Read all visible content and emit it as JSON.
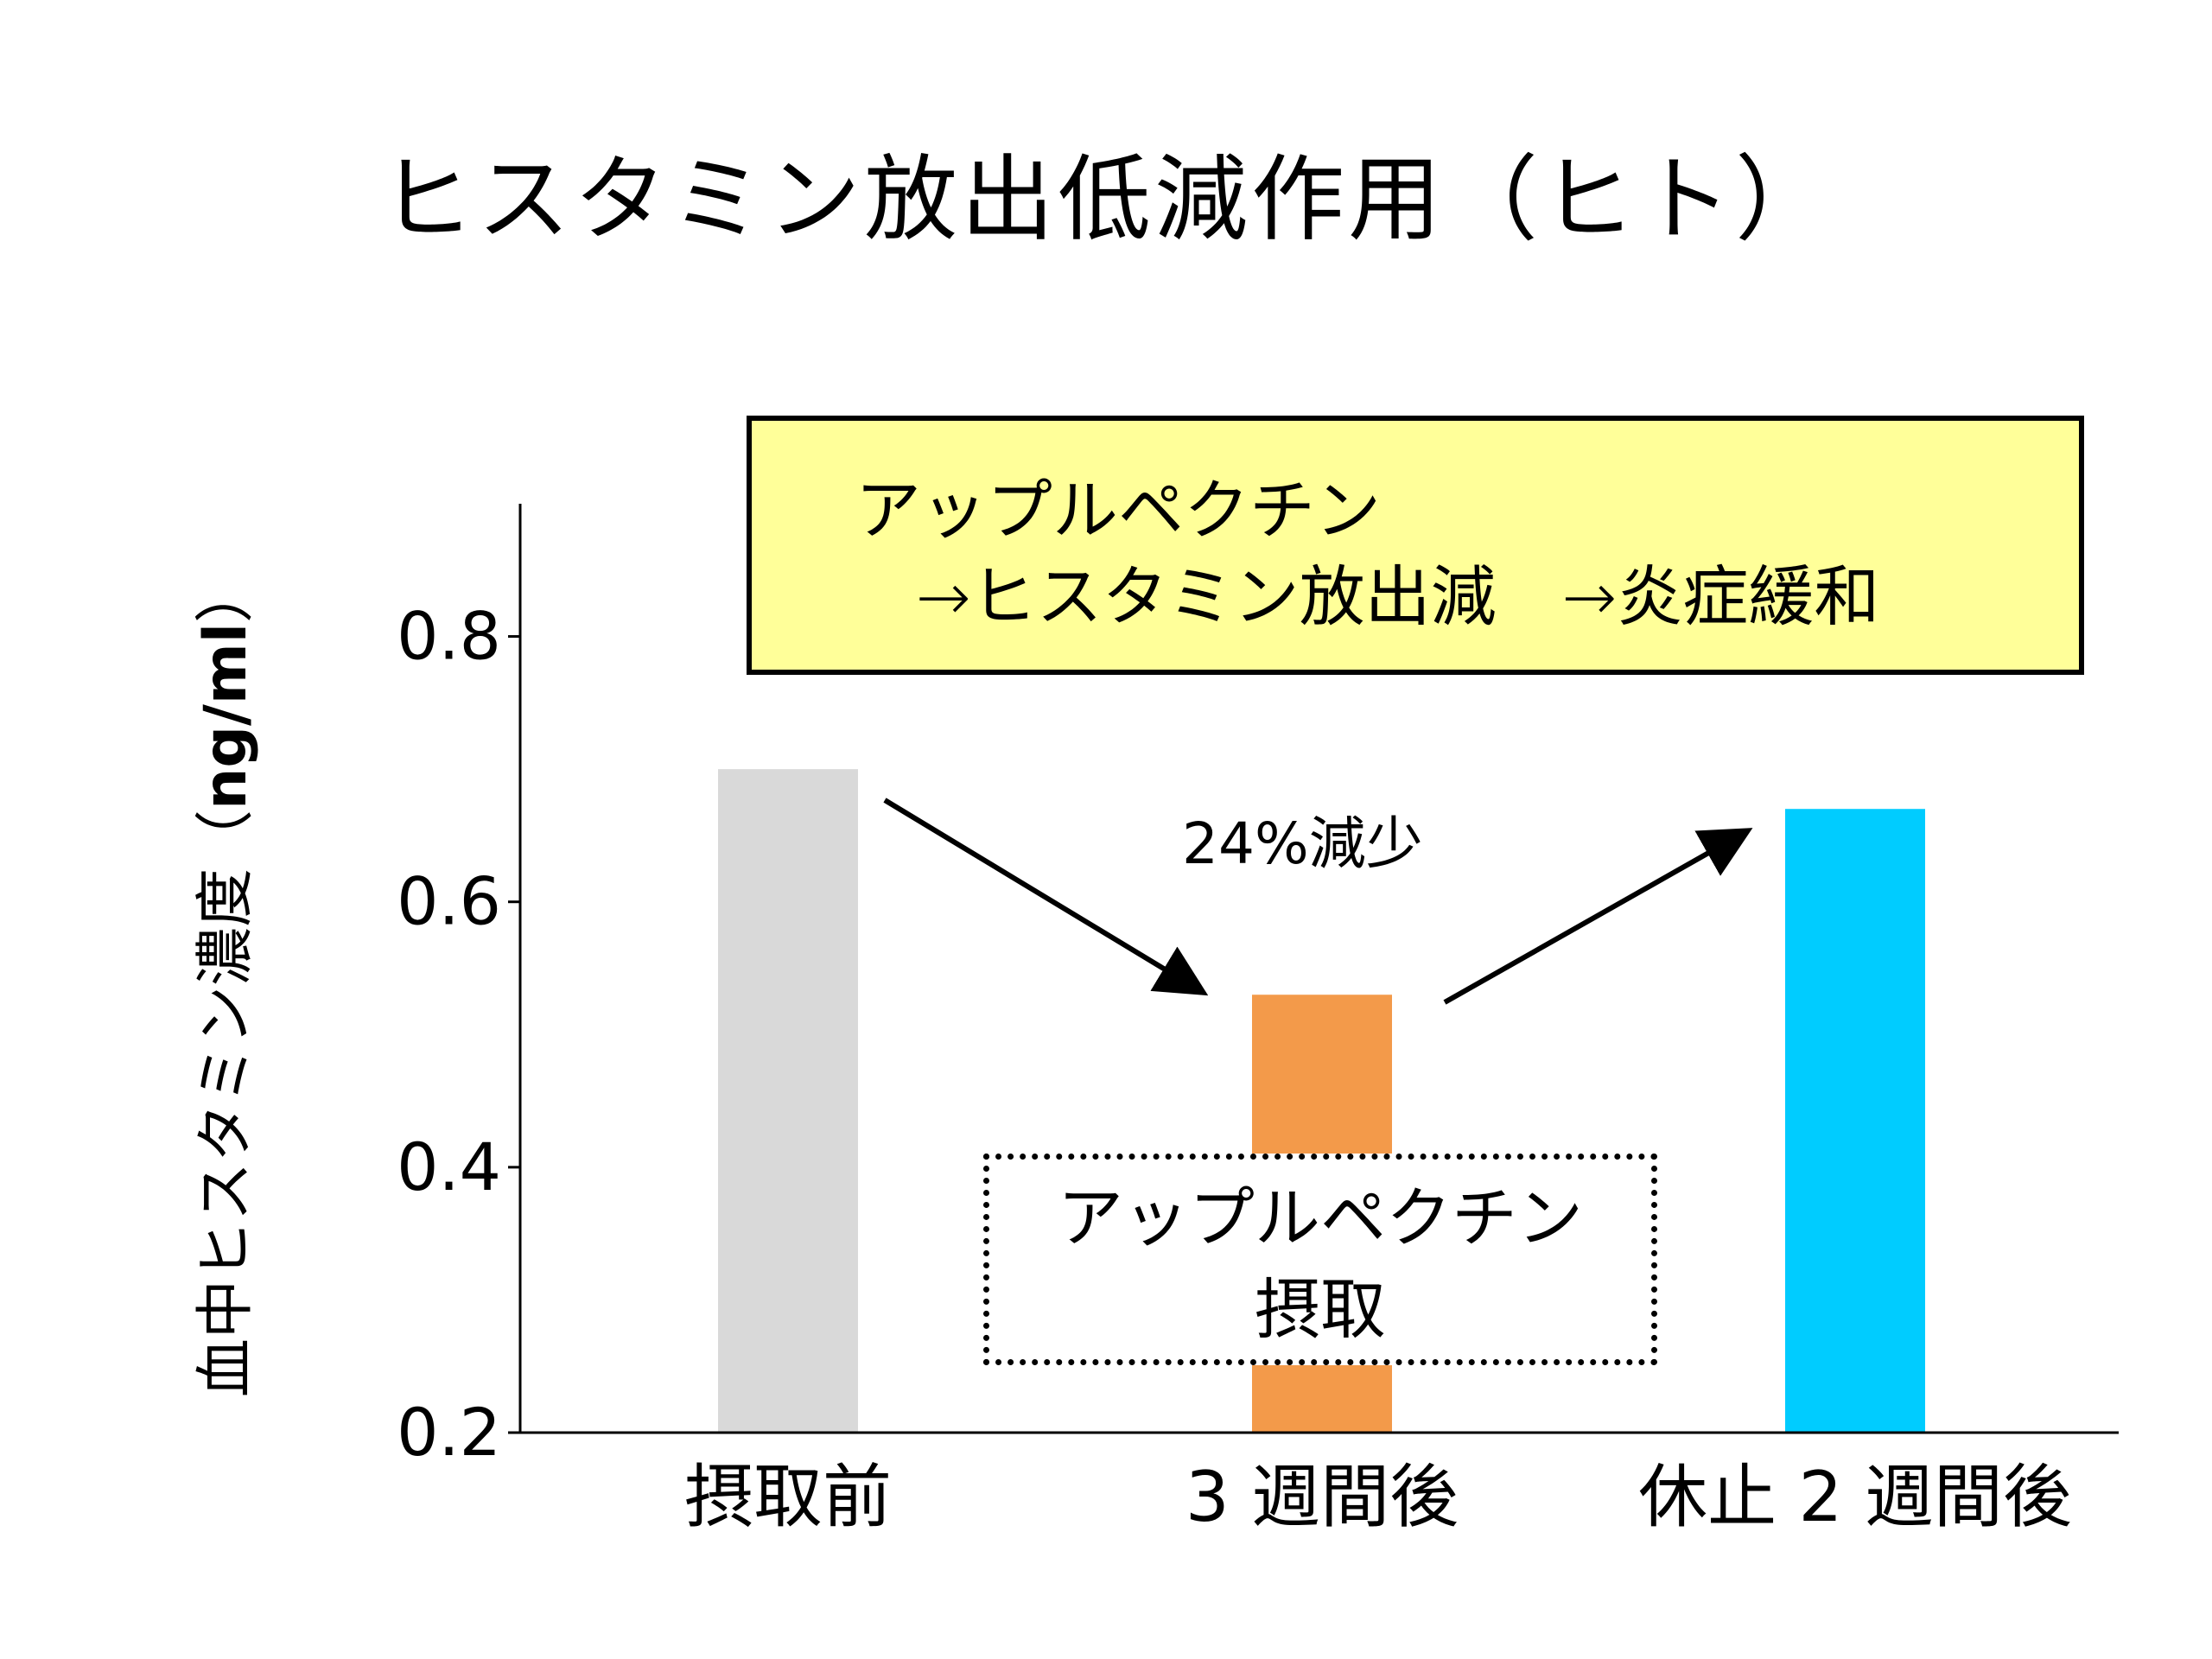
{
  "title": "ヒスタミン放出低減作用（ヒト）",
  "ylabel": {
    "text": "血中ヒスタミン濃度（",
    "unit": "ng/ml",
    "close": "）"
  },
  "info_box": {
    "line1": "アップルペクチン",
    "line2": "→ヒスタミン放出減　→炎症緩和",
    "bg": "#ffff99"
  },
  "annotation": "24%減少",
  "dotted_box": {
    "line1": "アップルペクチン",
    "line2": "摂取"
  },
  "chart_data": {
    "type": "bar",
    "categories": [
      "摂取前",
      "3 週間後",
      "休止 2 週間後"
    ],
    "values": [
      0.7,
      0.53,
      0.67
    ],
    "colors": [
      "#d9d9d9",
      "#f39a4a",
      "#00ccff"
    ],
    "ylim": [
      0.2,
      0.9
    ],
    "yticks": [
      0.2,
      0.4,
      0.6,
      0.8
    ],
    "ytick_labels": [
      "0.2",
      "0.4",
      "0.6",
      "0.8"
    ],
    "grid": false
  }
}
